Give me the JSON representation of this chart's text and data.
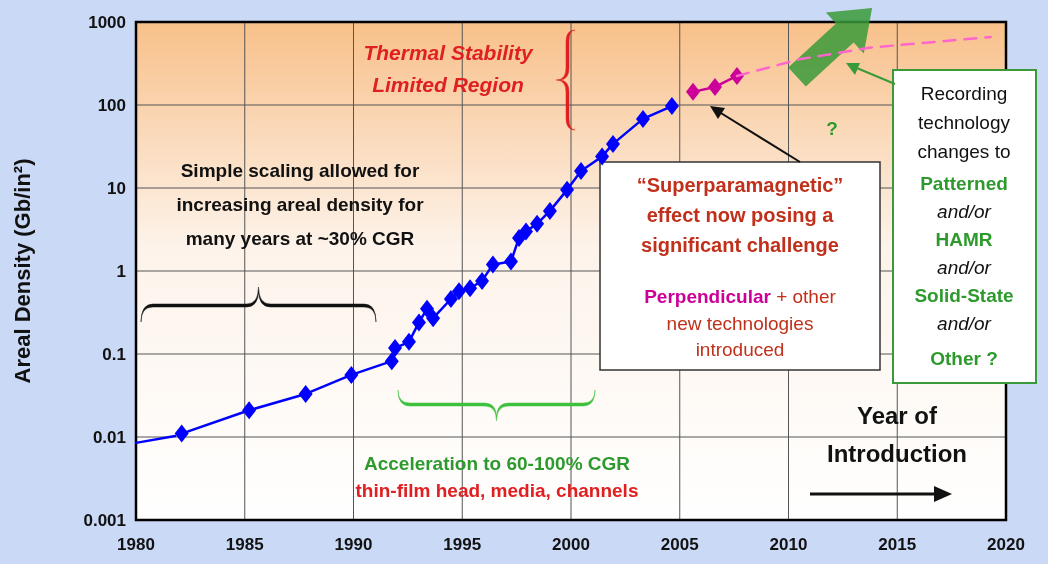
{
  "chart_data": {
    "type": "line",
    "ylabel": "Areal Density (Gb/in²)",
    "log": true,
    "grid": true,
    "marker": "diamond",
    "xlim": [
      1980,
      2020
    ],
    "xticks": [
      1980,
      1985,
      1990,
      1995,
      2000,
      2005,
      2010,
      2015,
      2020
    ],
    "ylim": [
      0.001,
      1000
    ],
    "yticks": [
      0.001,
      0.01,
      0.1,
      1,
      10,
      100,
      1000
    ],
    "series": [
      {
        "color": "#0000ff",
        "marker": "none",
        "x": [
          1980,
          1981.8
        ],
        "values": [
          0.0085,
          0.0103
        ]
      },
      {
        "color": "#0000ff",
        "x": [
          1982.1,
          1985.2,
          1987.8,
          1989.9,
          1991.76,
          1991.91,
          1992.55,
          1993.01,
          1993.38,
          1993.66,
          1994.48,
          1994.85,
          1995.36,
          1995.91,
          1996.41,
          1997.24,
          1997.61,
          1997.93,
          1998.44,
          1999.03,
          1999.82,
          2000.46,
          2001.43,
          2001.93,
          2003.31,
          2004.64
        ],
        "values": [
          0.011,
          0.021,
          0.033,
          0.056,
          0.082,
          0.118,
          0.14,
          0.24,
          0.35,
          0.27,
          0.46,
          0.57,
          0.62,
          0.76,
          1.2,
          1.3,
          2.5,
          3.0,
          3.7,
          5.3,
          9.5,
          16,
          24,
          34,
          68,
          97
        ]
      },
      {
        "color": "#cc0099",
        "x": [
          2005.61,
          2006.62,
          2007.63
        ],
        "values": [
          144,
          165,
          224
        ]
      },
      {
        "color": "#ff66cc",
        "marker": "none",
        "line_style": "dashed",
        "x": [
          2007.63,
          2010.5,
          2013.7,
          2019.3
        ],
        "values": [
          224,
          355,
          490,
          660
        ]
      }
    ],
    "annotations": [
      "Thermal Stability\nLimited Region",
      "Simple scaling allowed for\nincreasing areal density for\nmany years at ~30% CGR",
      "Acceleration to 60-100% CGR",
      "thin-film head, media, channels",
      "“Superparamagnetic”\neffect now posing a\nsignificant challenge",
      "Perpendicular",
      "+ other\nnew technologies\nintroduced",
      "?",
      "Recording\ntechnology\nchanges to",
      "Patterned",
      "and/or",
      "HAMR",
      "and/or",
      "Solid-State",
      "and/or",
      "Other ?",
      "Year of\nIntroduction"
    ]
  }
}
